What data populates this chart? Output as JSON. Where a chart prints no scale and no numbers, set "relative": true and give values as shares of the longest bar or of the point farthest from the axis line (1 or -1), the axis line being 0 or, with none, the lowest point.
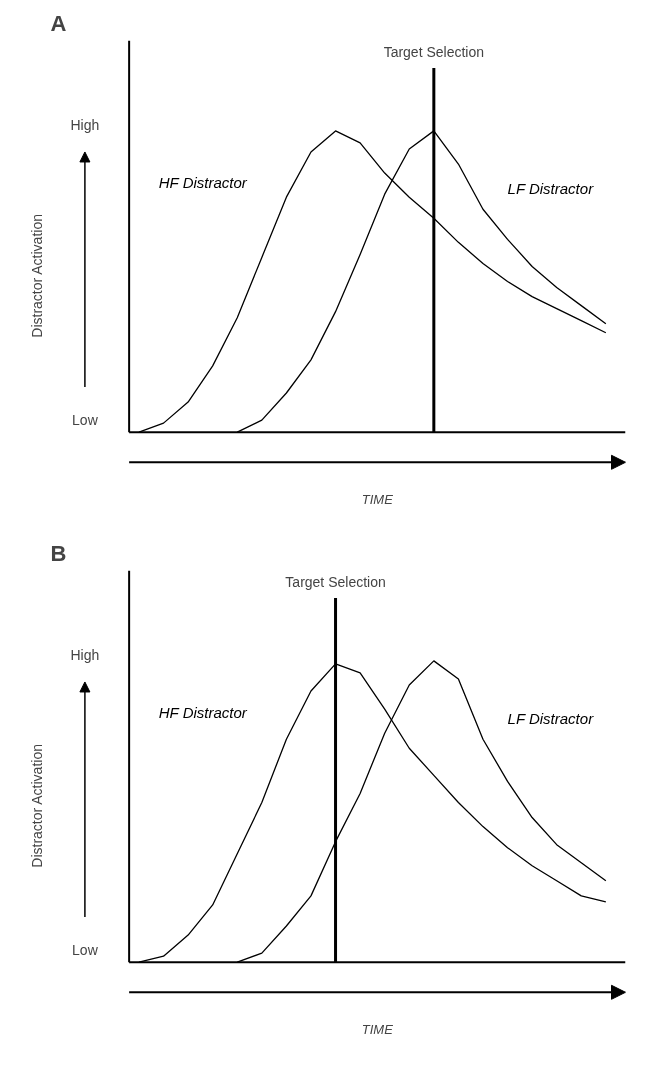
{
  "chart_data": [
    {
      "type": "line",
      "title": "A",
      "xlabel": "TIME",
      "ylabel": "Distractor Activation",
      "relative": true,
      "legend": false,
      "grid": false,
      "marker": "none",
      "line_style": "solid",
      "annotations": [
        "High",
        "Low",
        "Target Selection"
      ],
      "categories": [
        null,
        null,
        null,
        null,
        null,
        null,
        null,
        null,
        null,
        null,
        null,
        null,
        null,
        null,
        null,
        null,
        null,
        null,
        null,
        null
      ],
      "series": [
        {
          "name": "LF Distractor",
          "color": "#000000",
          "values": [
            null,
            null,
            null,
            null,
            0,
            0.04,
            0.13,
            0.24,
            0.4,
            0.59,
            0.79,
            0.94,
            1.0,
            0.89,
            0.74,
            0.64,
            0.55,
            0.48,
            0.42,
            0.36
          ]
        },
        {
          "name": "HF Distractor",
          "color": "#000000",
          "values": [
            0,
            0.03,
            0.1,
            0.22,
            0.38,
            0.58,
            0.78,
            0.93,
            1.0,
            0.96,
            0.86,
            0.78,
            0.71,
            0.63,
            0.56,
            0.5,
            0.45,
            0.41,
            0.37,
            0.33
          ]
        }
      ]
    },
    {
      "type": "line",
      "title": "B",
      "xlabel": "TIME",
      "ylabel": "Distractor Activation",
      "relative": true,
      "legend": false,
      "grid": false,
      "marker": "none",
      "line_style": "solid",
      "annotations": [
        "High",
        "Low",
        "Target Selection"
      ],
      "categories": [
        null,
        null,
        null,
        null,
        null,
        null,
        null,
        null,
        null,
        null,
        null,
        null,
        null,
        null,
        null,
        null,
        null,
        null,
        null,
        null
      ],
      "series": [
        {
          "name": "HF Distractor",
          "color": "#000000",
          "values": [
            0,
            0.02,
            0.09,
            0.19,
            0.36,
            0.53,
            0.74,
            0.9,
            0.99,
            0.96,
            0.84,
            0.71,
            0.62,
            0.53,
            0.45,
            0.38,
            0.32,
            0.27,
            0.22,
            0.2
          ]
        },
        {
          "name": "LF Distractor",
          "color": "#000000",
          "values": [
            null,
            null,
            null,
            null,
            0,
            0.03,
            0.12,
            0.22,
            0.4,
            0.56,
            0.76,
            0.92,
            1.0,
            0.94,
            0.74,
            0.6,
            0.48,
            0.39,
            0.33,
            0.27
          ]
        }
      ]
    }
  ]
}
